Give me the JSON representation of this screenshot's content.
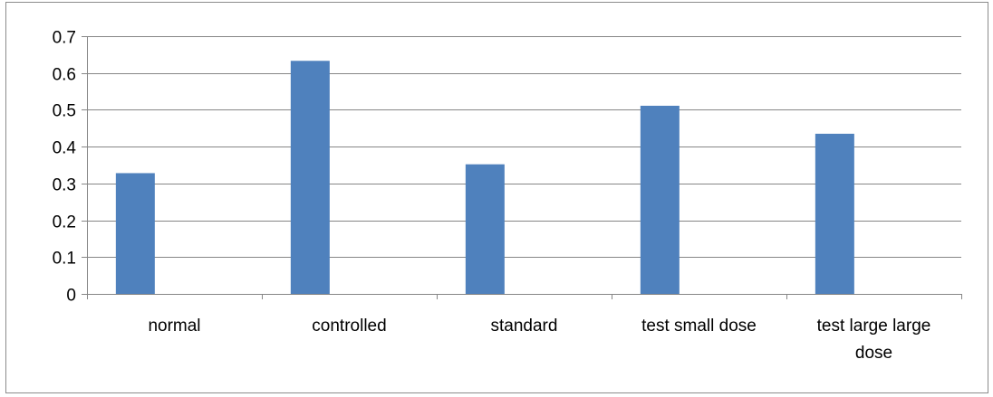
{
  "chart_data": {
    "type": "bar",
    "categories": [
      [
        "normal"
      ],
      [
        "controlled"
      ],
      [
        "standard"
      ],
      [
        "test small dose"
      ],
      [
        "test large large",
        "dose"
      ]
    ],
    "values": [
      0.328,
      0.633,
      0.352,
      0.511,
      0.435
    ],
    "yticks": [
      "0",
      "0.1",
      "0.2",
      "0.3",
      "0.4",
      "0.5",
      "0.6",
      "0.7"
    ],
    "ylim": [
      0,
      0.7
    ],
    "grid": true,
    "legend": "none",
    "title": "",
    "xlabel": "",
    "ylabel": "",
    "bar_color": "#4f81bd",
    "grid_color": "#868686",
    "axis_color": "#868686"
  }
}
